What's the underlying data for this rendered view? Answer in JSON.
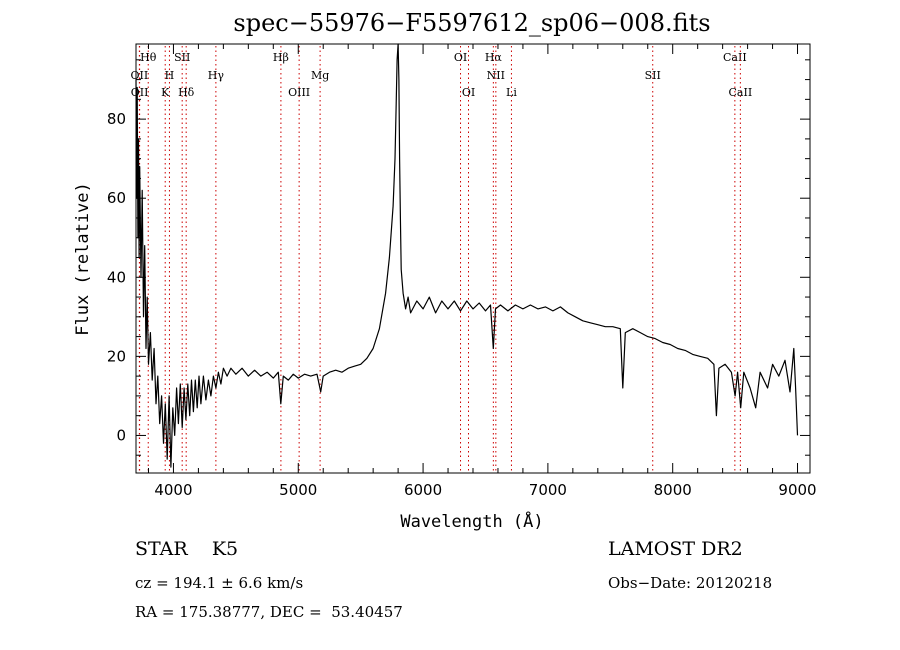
{
  "chart_data": {
    "type": "line",
    "title": "spec−55976−F5597612_sp06−008.fits",
    "xlabel": "Wavelength (Å)",
    "ylabel": "Flux (relative)",
    "xlim": [
      3700,
      9100
    ],
    "ylim": [
      -9.5,
      99
    ],
    "x_ticks": [
      4000,
      5000,
      6000,
      7000,
      8000,
      9000
    ],
    "y_ticks": [
      0,
      20,
      40,
      60,
      80
    ],
    "grid": false,
    "line_color": "#000000",
    "marker_color": "#cc0000",
    "series": [
      {
        "name": "",
        "points": [
          [
            3700,
            90
          ],
          [
            3705,
            60
          ],
          [
            3710,
            88
          ],
          [
            3715,
            50
          ],
          [
            3720,
            75
          ],
          [
            3725,
            45
          ],
          [
            3730,
            68
          ],
          [
            3740,
            40
          ],
          [
            3750,
            62
          ],
          [
            3760,
            30
          ],
          [
            3770,
            48
          ],
          [
            3780,
            22
          ],
          [
            3790,
            35
          ],
          [
            3800,
            18
          ],
          [
            3815,
            26
          ],
          [
            3830,
            14
          ],
          [
            3845,
            22
          ],
          [
            3860,
            8
          ],
          [
            3875,
            15
          ],
          [
            3890,
            3
          ],
          [
            3905,
            10
          ],
          [
            3920,
            -2
          ],
          [
            3935,
            8
          ],
          [
            3950,
            -6
          ],
          [
            3965,
            10
          ],
          [
            3980,
            -8
          ],
          [
            3995,
            7
          ],
          [
            4010,
            0
          ],
          [
            4025,
            12
          ],
          [
            4040,
            3
          ],
          [
            4055,
            13
          ],
          [
            4070,
            2
          ],
          [
            4085,
            12
          ],
          [
            4100,
            4
          ],
          [
            4115,
            13
          ],
          [
            4130,
            5
          ],
          [
            4145,
            14
          ],
          [
            4160,
            6
          ],
          [
            4175,
            14
          ],
          [
            4190,
            7
          ],
          [
            4205,
            15
          ],
          [
            4220,
            8
          ],
          [
            4240,
            15
          ],
          [
            4260,
            9
          ],
          [
            4280,
            14
          ],
          [
            4300,
            10
          ],
          [
            4320,
            15
          ],
          [
            4340,
            12
          ],
          [
            4360,
            16
          ],
          [
            4380,
            13
          ],
          [
            4400,
            17
          ],
          [
            4430,
            15
          ],
          [
            4460,
            17
          ],
          [
            4500,
            15.5
          ],
          [
            4550,
            17
          ],
          [
            4600,
            15
          ],
          [
            4650,
            16.5
          ],
          [
            4700,
            15
          ],
          [
            4750,
            16
          ],
          [
            4800,
            14.5
          ],
          [
            4840,
            16
          ],
          [
            4860,
            8
          ],
          [
            4880,
            15
          ],
          [
            4920,
            14
          ],
          [
            4960,
            15.5
          ],
          [
            5000,
            14.5
          ],
          [
            5050,
            15.5
          ],
          [
            5100,
            15
          ],
          [
            5150,
            15.5
          ],
          [
            5180,
            11
          ],
          [
            5200,
            15
          ],
          [
            5250,
            16
          ],
          [
            5300,
            16.5
          ],
          [
            5350,
            16
          ],
          [
            5400,
            17
          ],
          [
            5450,
            17.5
          ],
          [
            5500,
            18
          ],
          [
            5550,
            19.5
          ],
          [
            5600,
            22
          ],
          [
            5650,
            27
          ],
          [
            5700,
            36
          ],
          [
            5730,
            45
          ],
          [
            5760,
            58
          ],
          [
            5775,
            70
          ],
          [
            5785,
            84
          ],
          [
            5792,
            95
          ],
          [
            5800,
            99
          ],
          [
            5806,
            90
          ],
          [
            5812,
            70
          ],
          [
            5818,
            55
          ],
          [
            5825,
            42
          ],
          [
            5840,
            36
          ],
          [
            5860,
            32
          ],
          [
            5880,
            35
          ],
          [
            5900,
            31
          ],
          [
            5950,
            34
          ],
          [
            6000,
            32
          ],
          [
            6050,
            35
          ],
          [
            6100,
            31
          ],
          [
            6150,
            34
          ],
          [
            6200,
            32
          ],
          [
            6250,
            34
          ],
          [
            6300,
            31.5
          ],
          [
            6350,
            34
          ],
          [
            6400,
            32
          ],
          [
            6450,
            33.5
          ],
          [
            6500,
            31.5
          ],
          [
            6540,
            33
          ],
          [
            6563,
            22
          ],
          [
            6580,
            32
          ],
          [
            6620,
            33
          ],
          [
            6680,
            31.5
          ],
          [
            6740,
            33
          ],
          [
            6800,
            32
          ],
          [
            6860,
            33
          ],
          [
            6920,
            32
          ],
          [
            6980,
            32.5
          ],
          [
            7040,
            31.5
          ],
          [
            7100,
            32.5
          ],
          [
            7160,
            31
          ],
          [
            7220,
            30
          ],
          [
            7280,
            29
          ],
          [
            7340,
            28.5
          ],
          [
            7400,
            28
          ],
          [
            7460,
            27.5
          ],
          [
            7520,
            27.5
          ],
          [
            7580,
            27
          ],
          [
            7600,
            12
          ],
          [
            7620,
            26
          ],
          [
            7680,
            27
          ],
          [
            7740,
            26
          ],
          [
            7800,
            25
          ],
          [
            7860,
            24.5
          ],
          [
            7920,
            23.5
          ],
          [
            7980,
            23
          ],
          [
            8040,
            22
          ],
          [
            8100,
            21.5
          ],
          [
            8160,
            20.5
          ],
          [
            8220,
            20
          ],
          [
            8280,
            19.5
          ],
          [
            8330,
            18
          ],
          [
            8350,
            5
          ],
          [
            8370,
            17
          ],
          [
            8420,
            18
          ],
          [
            8470,
            16
          ],
          [
            8500,
            10
          ],
          [
            8520,
            16
          ],
          [
            8545,
            7
          ],
          [
            8570,
            16
          ],
          [
            8620,
            12
          ],
          [
            8665,
            7
          ],
          [
            8700,
            16
          ],
          [
            8760,
            12
          ],
          [
            8800,
            18
          ],
          [
            8850,
            15
          ],
          [
            8900,
            19
          ],
          [
            8940,
            11
          ],
          [
            8970,
            22
          ],
          [
            8985,
            12
          ],
          [
            9000,
            0
          ]
        ]
      }
    ],
    "line_markers": [
      {
        "label": "Hθ",
        "wavelength": 3798,
        "row": 0
      },
      {
        "label": "OII",
        "wavelength": 3727,
        "row": 1
      },
      {
        "label": "OII",
        "wavelength": 3729,
        "row": 2
      },
      {
        "label": "H",
        "wavelength": 3968,
        "row": 1
      },
      {
        "label": "K",
        "wavelength": 3934,
        "row": 2
      },
      {
        "label": "SII",
        "wavelength": 4070,
        "row": 0
      },
      {
        "label": "Hδ",
        "wavelength": 4102,
        "row": 2
      },
      {
        "label": "Hγ",
        "wavelength": 4340,
        "row": 1
      },
      {
        "label": "Hβ",
        "wavelength": 4861,
        "row": 0
      },
      {
        "label": "OIII",
        "wavelength": 5007,
        "row": 2
      },
      {
        "label": "Mg",
        "wavelength": 5175,
        "row": 1
      },
      {
        "label": "OI",
        "wavelength": 6300,
        "row": 0
      },
      {
        "label": "OI",
        "wavelength": 6364,
        "row": 2
      },
      {
        "label": "Hα",
        "wavelength": 6563,
        "row": 0
      },
      {
        "label": "NII",
        "wavelength": 6583,
        "row": 1
      },
      {
        "label": "Li",
        "wavelength": 6708,
        "row": 2
      },
      {
        "label": "SII",
        "wavelength": 7840,
        "row": 1
      },
      {
        "label": "CaII",
        "wavelength": 8498,
        "row": 0
      },
      {
        "label": "CaII",
        "wavelength": 8542,
        "row": 2
      }
    ]
  },
  "info": {
    "class_line": "STAR    K5",
    "survey": "LAMOST DR2",
    "cz_line": "cz = 194.1 ± 6.6 km/s",
    "obs_date": "Obs−Date: 20120218",
    "radec_line": "RA = 175.38777, DEC =  53.40457"
  }
}
